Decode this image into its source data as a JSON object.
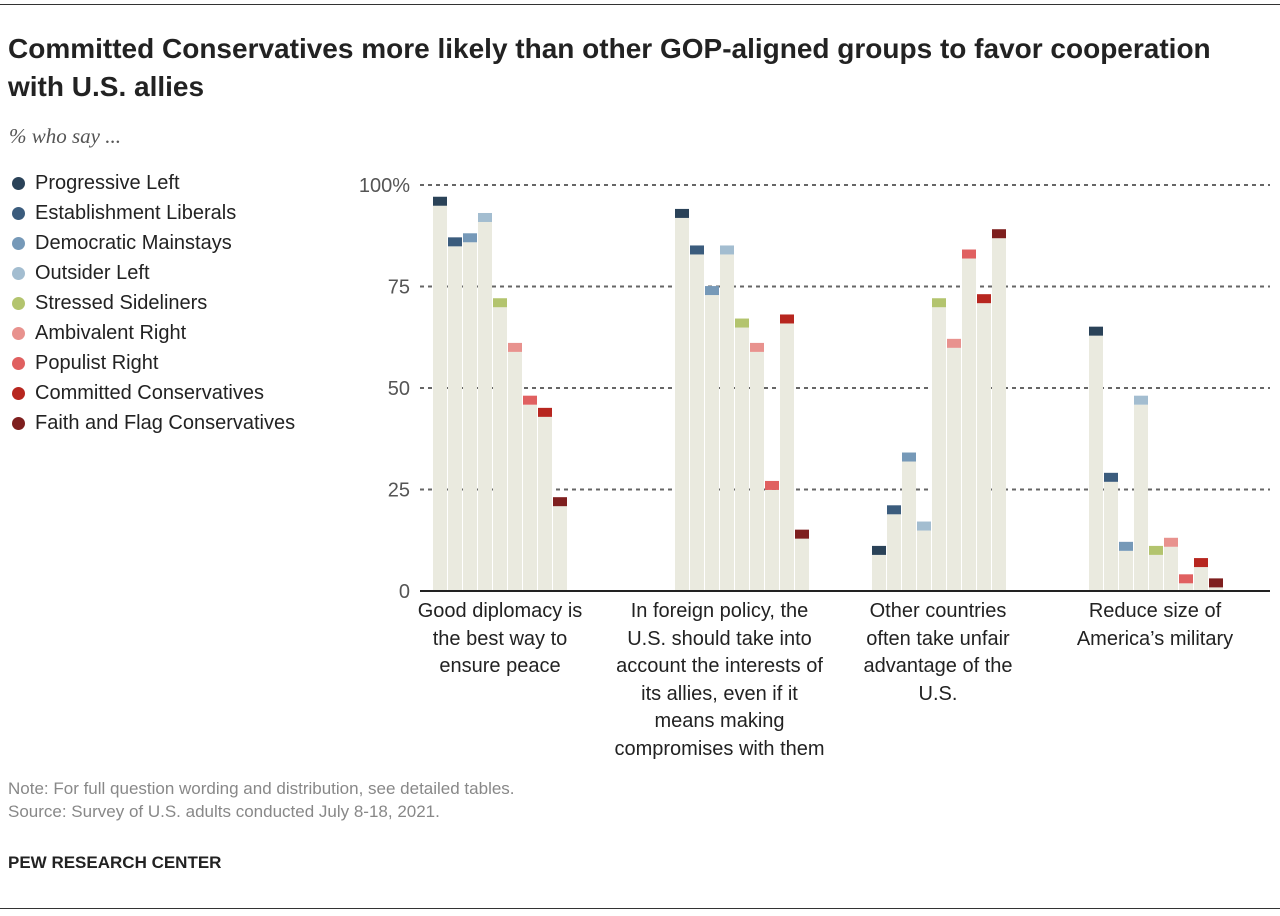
{
  "title": "Committed Conservatives more likely than other GOP-aligned groups to favor cooperation with U.S. allies",
  "subtitle": "% who say ...",
  "note": "Note: For full question wording and distribution, see detailed tables.",
  "source": "Source: Survey of U.S. adults conducted July 8-18, 2021.",
  "brand": "PEW RESEARCH CENTER",
  "chart_data": {
    "type": "bar",
    "ylim": [
      0,
      100
    ],
    "yticks": [
      0,
      25,
      50,
      75,
      100
    ],
    "ytick_labels": [
      "0",
      "25",
      "50",
      "75",
      "100%"
    ],
    "grid": true,
    "legend_position": "left",
    "categories": [
      "Good diplomacy is the best way to ensure peace",
      "In foreign policy, the U.S. should take into account the interests of its allies, even if it means making compromises with them",
      "Other countries often take unfair advantage of the U.S.",
      "Reduce size of America’s military"
    ],
    "series": [
      {
        "name": "Progressive Left",
        "color": "#2a4258",
        "values": [
          96,
          93,
          10,
          64
        ]
      },
      {
        "name": "Establishment Liberals",
        "color": "#3b5c7d",
        "values": [
          86,
          84,
          20,
          28
        ]
      },
      {
        "name": "Democratic Mainstays",
        "color": "#7699b8",
        "values": [
          87,
          74,
          33,
          11
        ]
      },
      {
        "name": "Outsider Left",
        "color": "#a3bdd0",
        "values": [
          92,
          84,
          16,
          47
        ]
      },
      {
        "name": "Stressed Sideliners",
        "color": "#b3c46e",
        "values": [
          71,
          66,
          71,
          10
        ]
      },
      {
        "name": "Ambivalent Right",
        "color": "#e8928e",
        "values": [
          60,
          60,
          61,
          12
        ]
      },
      {
        "name": "Populist Right",
        "color": "#e06060",
        "values": [
          47,
          26,
          83,
          3
        ]
      },
      {
        "name": "Committed Conservatives",
        "color": "#b7261f",
        "values": [
          44,
          67,
          72,
          7
        ]
      },
      {
        "name": "Faith and Flag Conservatives",
        "color": "#7e1f1e",
        "values": [
          22,
          14,
          88,
          2
        ]
      }
    ]
  }
}
